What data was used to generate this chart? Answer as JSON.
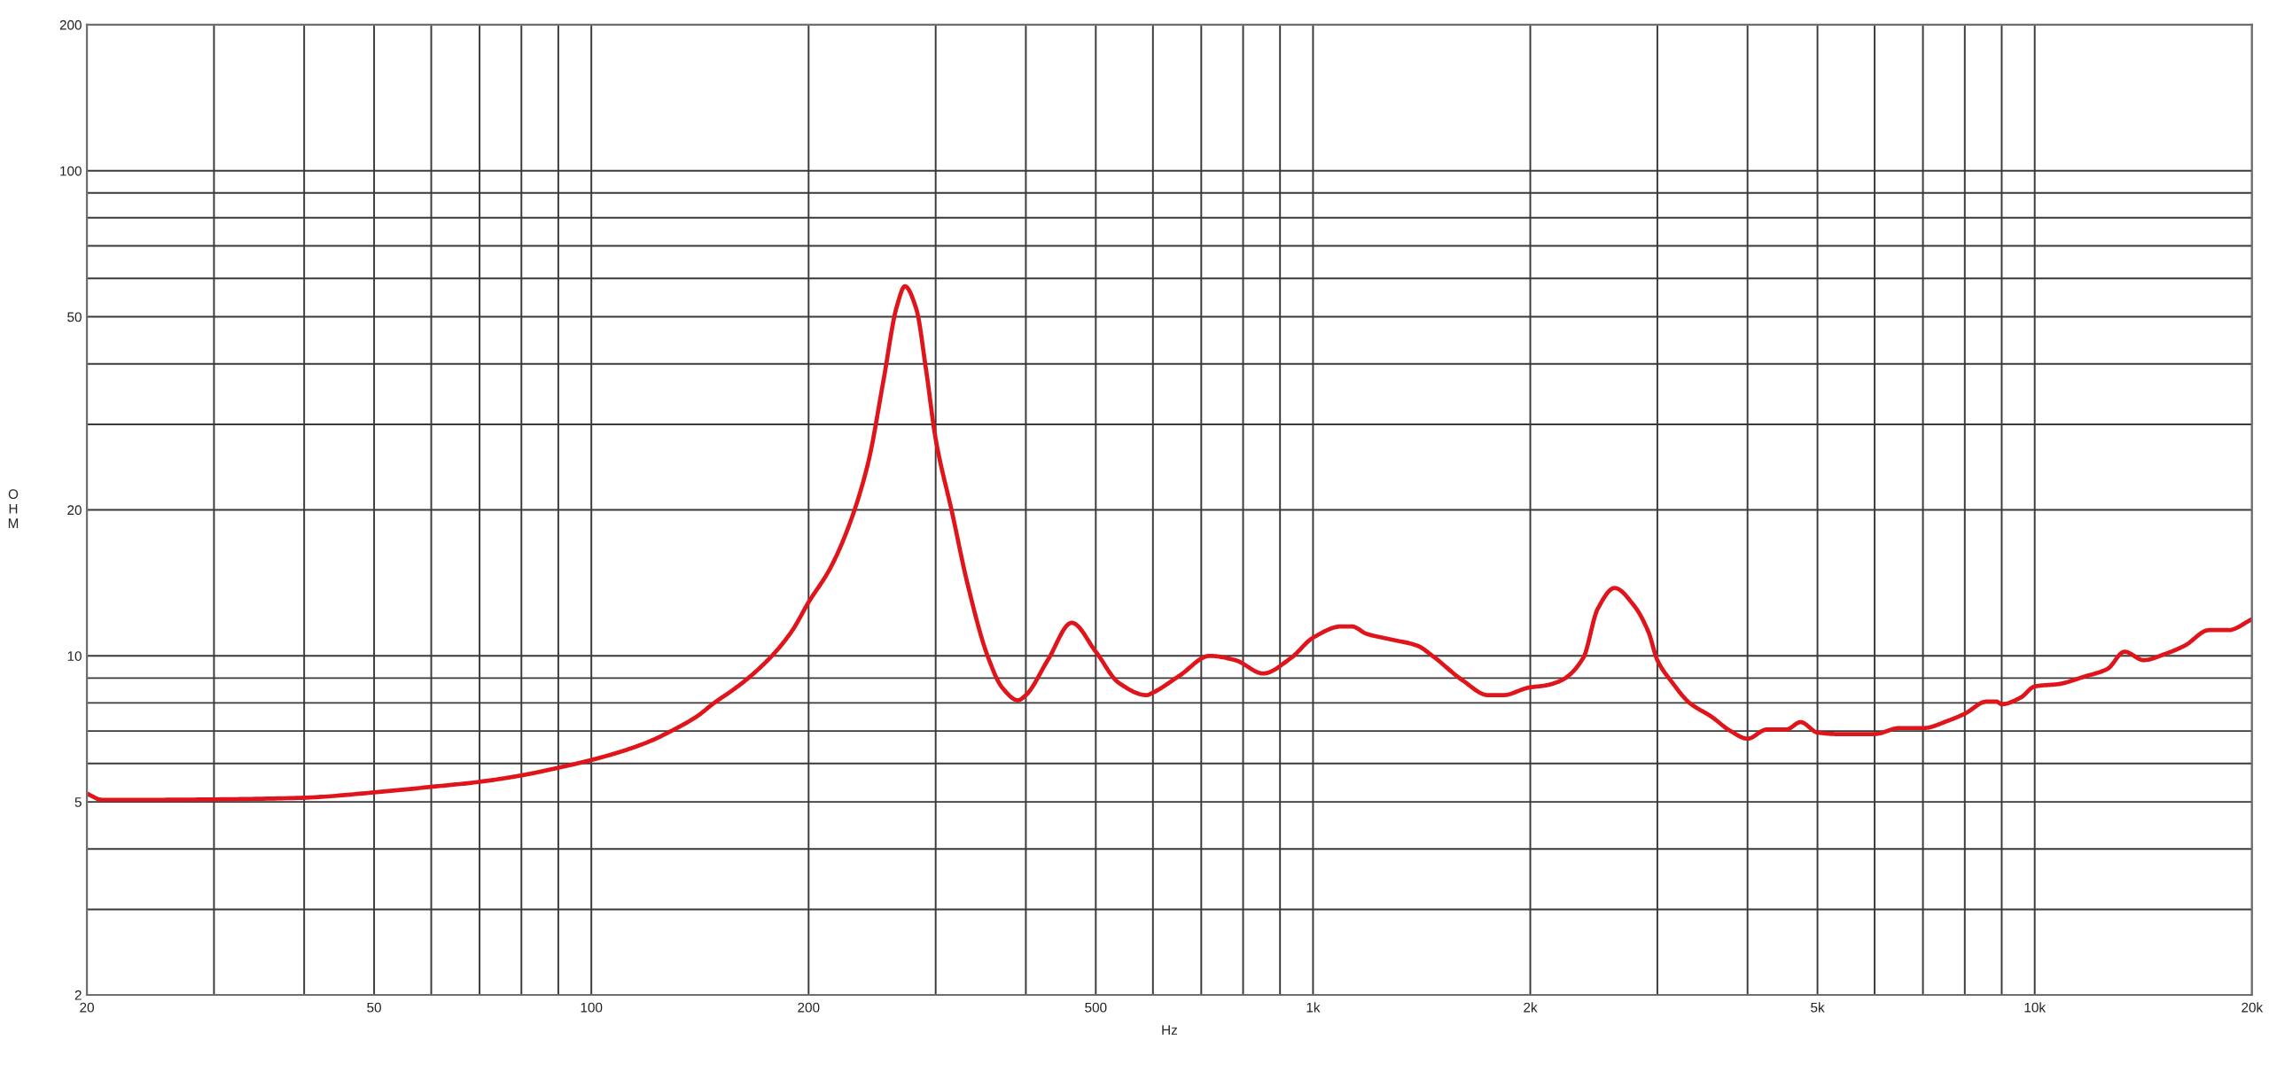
{
  "chart_data": {
    "type": "line",
    "xlabel": "Hz",
    "ylabel": "OHM",
    "log": "xy",
    "grid": true,
    "xlim": [
      20,
      20000
    ],
    "ylim": [
      2,
      200
    ],
    "xticks": [
      20,
      {
        "value": 30,
        "label": null
      },
      {
        "value": 40,
        "label": null
      },
      50,
      {
        "value": 60,
        "label": null
      },
      {
        "value": 70,
        "label": null
      },
      {
        "value": 80,
        "label": null
      },
      {
        "value": 90,
        "label": null
      },
      100,
      200,
      {
        "value": 300,
        "label": null
      },
      {
        "value": 400,
        "label": null
      },
      500,
      {
        "value": 600,
        "label": null
      },
      {
        "value": 700,
        "label": null
      },
      {
        "value": 800,
        "label": null
      },
      {
        "value": 900,
        "label": null
      },
      {
        "value": 1000,
        "label": "1k"
      },
      {
        "value": 2000,
        "label": "2k"
      },
      {
        "value": 3000,
        "label": null
      },
      {
        "value": 4000,
        "label": null
      },
      {
        "value": 5000,
        "label": "5k"
      },
      {
        "value": 6000,
        "label": null
      },
      {
        "value": 7000,
        "label": null
      },
      {
        "value": 8000,
        "label": null
      },
      {
        "value": 9000,
        "label": null
      },
      {
        "value": 10000,
        "label": "10k"
      },
      {
        "value": 20000,
        "label": "20k"
      }
    ],
    "yticks": [
      2,
      {
        "value": 3,
        "label": null
      },
      {
        "value": 4,
        "label": null
      },
      5,
      {
        "value": 6,
        "label": null
      },
      {
        "value": 7,
        "label": null
      },
      {
        "value": 8,
        "label": null
      },
      {
        "value": 9,
        "label": null
      },
      10,
      20,
      {
        "value": 30,
        "label": null
      },
      {
        "value": 40,
        "label": null
      },
      50,
      {
        "value": 60,
        "label": null
      },
      {
        "value": 70,
        "label": null
      },
      {
        "value": 80,
        "label": null
      },
      {
        "value": 90,
        "label": null
      },
      100,
      200
    ],
    "x": [
      20,
      21,
      25,
      30,
      40,
      50,
      60,
      70,
      80,
      90,
      100,
      110,
      120,
      129,
      140,
      148,
      157,
      165,
      179,
      190,
      200,
      214,
      227,
      242,
      254,
      265,
      272,
      282,
      291,
      300,
      316,
      332,
      354,
      371,
      390,
      400,
      429,
      463,
      500,
      538,
      588,
      600,
      653,
      719,
      780,
      853,
      932,
      1000,
      1095,
      1131,
      1187,
      1286,
      1394,
      1464,
      1612,
      1748,
      1835,
      1989,
      2108,
      2208,
      2368,
      2480,
      2617,
      2784,
      2916,
      3000,
      3148,
      3324,
      3562,
      3789,
      4000,
      4254,
      4524,
      4738,
      5000,
      5318,
      6000,
      6500,
      7021,
      7583,
      8000,
      8581,
      8848,
      9000,
      9556,
      10000,
      10812,
      11677,
      12612,
      13316,
      14158,
      15181,
      16144,
      17434,
      18550,
      20000
    ],
    "series": [
      {
        "color": "#e0151b",
        "values": [
          5.2,
          5.05,
          5.05,
          5.06,
          5.1,
          5.23,
          5.37,
          5.5,
          5.67,
          5.88,
          6.1,
          6.35,
          6.65,
          7.0,
          7.5,
          8.0,
          8.5,
          9.0,
          10.1,
          11.3,
          12.9,
          15.1,
          18.4,
          25.1,
          37,
          52.5,
          57.8,
          51.9,
          38.8,
          28,
          19.8,
          14.1,
          10.0,
          8.6,
          8.1,
          8.3,
          9.8,
          11.7,
          10.2,
          8.8,
          8.3,
          8.4,
          9.1,
          10.0,
          9.8,
          9.2,
          9.9,
          10.9,
          11.5,
          11.5,
          11.1,
          10.8,
          10.5,
          10.0,
          8.9,
          8.3,
          8.3,
          8.6,
          8.7,
          8.9,
          9.9,
          12.5,
          13.8,
          12.7,
          11.2,
          9.8,
          8.8,
          8.0,
          7.5,
          7.0,
          6.75,
          7.05,
          7.05,
          7.3,
          6.95,
          6.9,
          6.9,
          7.1,
          7.1,
          7.35,
          7.6,
          8.05,
          8.05,
          7.95,
          8.2,
          8.65,
          8.75,
          9.05,
          9.4,
          10.2,
          9.8,
          10.1,
          10.5,
          11.3,
          11.3,
          11.9
        ]
      }
    ]
  }
}
